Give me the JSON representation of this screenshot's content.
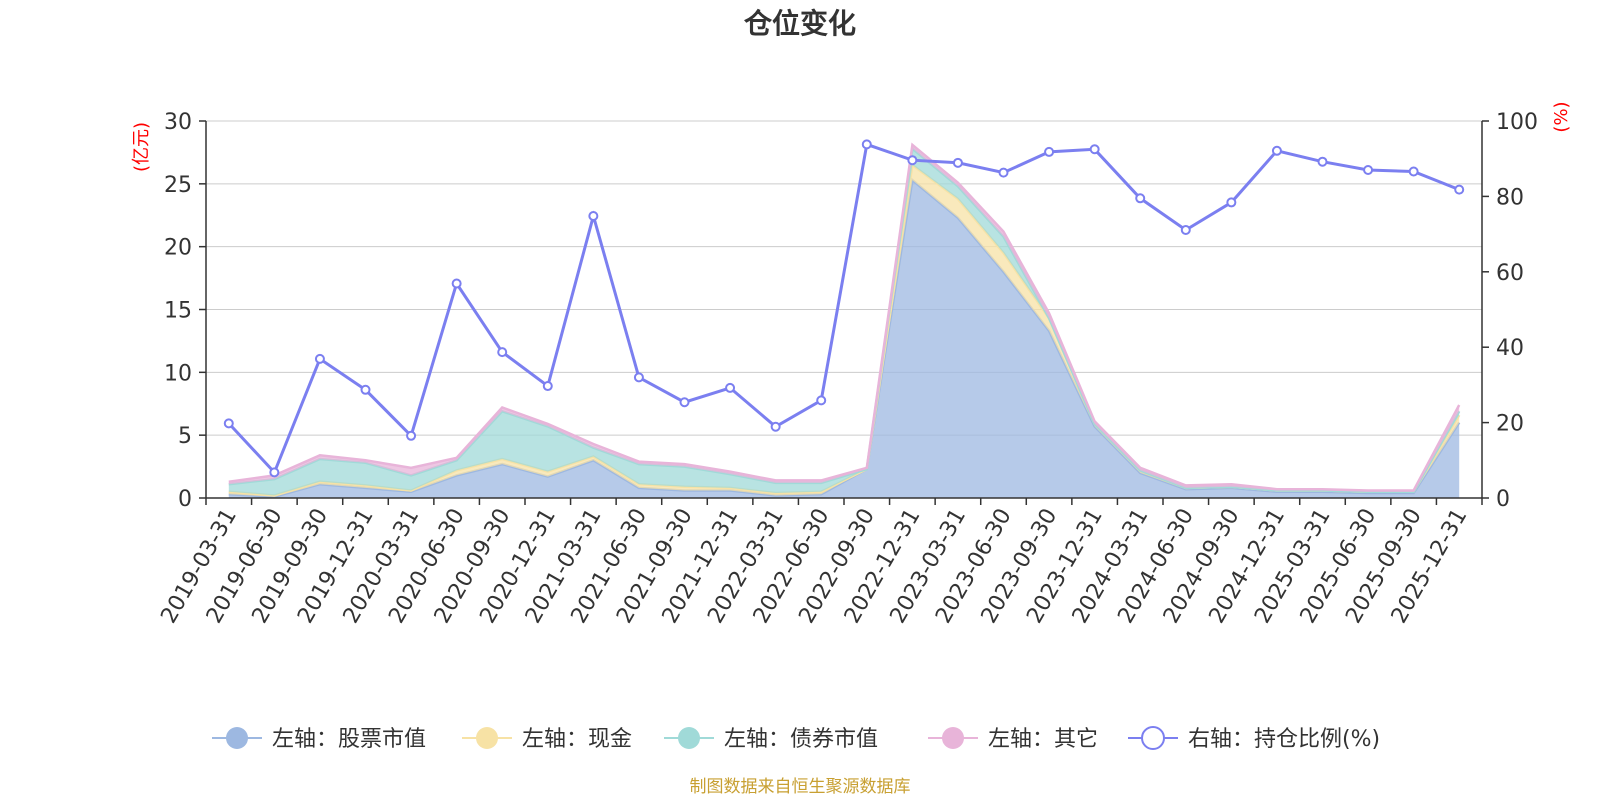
{
  "chart_data": {
    "type": "area",
    "title": "仓位变化",
    "source": "制图数据来自恒生聚源数据库",
    "left_axis": {
      "unit": "(亿元)",
      "ylim": [
        0,
        30
      ],
      "ticks": [
        "0",
        "5",
        "10",
        "15",
        "20",
        "25",
        "30"
      ]
    },
    "right_axis": {
      "unit": "(%)",
      "ylim": [
        0,
        100
      ],
      "ticks": [
        "0",
        "20",
        "40",
        "60",
        "80",
        "100"
      ]
    },
    "categories": [
      "2019-03-31",
      "2019-06-30",
      "2019-09-30",
      "2019-12-31",
      "2020-03-31",
      "2020-06-30",
      "2020-09-30",
      "2020-12-31",
      "2021-03-31",
      "2021-06-30",
      "2021-09-30",
      "2021-12-31",
      "2022-03-31",
      "2022-06-30",
      "2022-09-30",
      "2022-12-31",
      "2023-03-31",
      "2023-06-30",
      "2023-09-30",
      "2023-12-31",
      "2024-03-31",
      "2024-06-30",
      "2024-09-30",
      "2024-12-31",
      "2025-03-31",
      "2025-06-30",
      "2025-09-30",
      "2025-12-31"
    ],
    "series": [
      {
        "name": "左轴：股票市值",
        "axis": "left",
        "stack": true,
        "color": "#9db8e1",
        "values": [
          0.3,
          0.1,
          1.1,
          0.8,
          0.5,
          1.8,
          2.7,
          1.7,
          3.0,
          0.8,
          0.6,
          0.6,
          0.2,
          0.3,
          2.3,
          25.3,
          22.3,
          18.0,
          13.3,
          5.7,
          2.0,
          0.7,
          0.8,
          0.5,
          0.5,
          0.4,
          0.4,
          6.0
        ]
      },
      {
        "name": "左轴：现金",
        "axis": "left",
        "stack": true,
        "color": "#f7e2a5",
        "values": [
          0.2,
          0.1,
          0.2,
          0.2,
          0.1,
          0.4,
          0.4,
          0.4,
          0.3,
          0.3,
          0.3,
          0.2,
          0.2,
          0.2,
          0.0,
          1.2,
          1.5,
          1.5,
          1.0,
          0.2,
          0.2,
          0.1,
          0.1,
          0.1,
          0.1,
          0.1,
          0.1,
          0.6
        ]
      },
      {
        "name": "左轴：债券市值",
        "axis": "left",
        "stack": true,
        "color": "#a0dad8",
        "values": [
          0.6,
          1.3,
          1.8,
          1.8,
          1.2,
          0.8,
          3.8,
          3.6,
          0.7,
          1.6,
          1.6,
          1.1,
          0.8,
          0.7,
          0.0,
          1.3,
          1.0,
          1.3,
          0.0,
          0.0,
          0.0,
          0.0,
          0.0,
          0.0,
          0.0,
          0.0,
          0.0,
          0.3
        ]
      },
      {
        "name": "左轴：其它",
        "axis": "left",
        "stack": true,
        "color": "#e8b4d9",
        "values": [
          0.2,
          0.3,
          0.3,
          0.2,
          0.6,
          0.2,
          0.3,
          0.2,
          0.3,
          0.2,
          0.2,
          0.2,
          0.2,
          0.2,
          0.1,
          0.3,
          0.3,
          0.4,
          0.4,
          0.2,
          0.2,
          0.2,
          0.2,
          0.1,
          0.1,
          0.1,
          0.1,
          0.5
        ]
      },
      {
        "name": "右轴：持仓比例(%)",
        "axis": "right",
        "stack": false,
        "color": "#7b7ff0",
        "values": [
          19.8,
          6.8,
          36.9,
          28.7,
          16.5,
          56.9,
          38.7,
          29.7,
          74.8,
          32.0,
          25.4,
          29.2,
          18.9,
          25.9,
          93.8,
          89.6,
          88.9,
          86.3,
          91.8,
          92.5,
          79.5,
          71.1,
          78.4,
          92.1,
          89.2,
          87.0,
          86.6,
          81.8
        ]
      }
    ]
  }
}
